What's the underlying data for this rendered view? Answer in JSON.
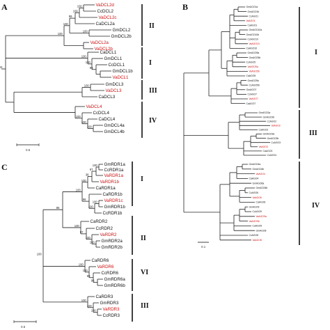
{
  "panels": {
    "A": {
      "letter": "A",
      "leaves": [
        {
          "name": "VaDCL2d",
          "color": "#cc1111"
        },
        {
          "name": "CcDCL2",
          "color": "#111111"
        },
        {
          "name": "VaDCL2c",
          "color": "#cc1111"
        },
        {
          "name": "CaDCL2a",
          "color": "#111111"
        },
        {
          "name": "GmDCL2",
          "color": "#111111"
        },
        {
          "name": "GmDCL2b",
          "color": "#111111"
        },
        {
          "name": "VaDCL2a",
          "color": "#cc1111"
        },
        {
          "name": "VaDCL2b",
          "color": "#cc1111"
        },
        {
          "name": "CaDCL1",
          "color": "#111111"
        },
        {
          "name": "GmDCL1",
          "color": "#111111"
        },
        {
          "name": "CcDCL1",
          "color": "#111111"
        },
        {
          "name": "GmDCL1b",
          "color": "#111111"
        },
        {
          "name": "VaDCL1",
          "color": "#cc1111"
        },
        {
          "name": "GmDCL3",
          "color": "#111111"
        },
        {
          "name": "VaDCL3",
          "color": "#cc1111"
        },
        {
          "name": "CaDCL3",
          "color": "#111111"
        },
        {
          "name": "VaDCL4",
          "color": "#cc1111"
        },
        {
          "name": "CcDCL4",
          "color": "#111111"
        },
        {
          "name": "CaDCL4",
          "color": "#111111"
        },
        {
          "name": "GmDCL4a",
          "color": "#111111"
        },
        {
          "name": "GmDCL4b",
          "color": "#111111"
        }
      ],
      "bootstraps": [
        "100",
        "100",
        "99",
        "100",
        "100",
        "100",
        "92",
        "100",
        "100",
        "99",
        "100",
        "100",
        "100",
        "100"
      ],
      "groups": [
        "II",
        "I",
        "III",
        "IV"
      ],
      "scale": "0.5"
    },
    "B": {
      "letter": "B",
      "leaves": [
        {
          "name": "GmAGO1a",
          "color": "#111111"
        },
        {
          "name": "GmAGO1b",
          "color": "#111111"
        },
        {
          "name": "CcAGO1",
          "color": "#111111"
        },
        {
          "name": "VaAGO1",
          "color": "#cc1111"
        },
        {
          "name": "CaAGO1",
          "color": "#111111"
        },
        {
          "name": "GmAGO10a",
          "color": "#111111"
        },
        {
          "name": "GmAGO10b",
          "color": "#111111"
        },
        {
          "name": "CcAGO10",
          "color": "#111111"
        },
        {
          "name": "VaAGO10",
          "color": "#cc1111"
        },
        {
          "name": "CaAGO10",
          "color": "#111111"
        },
        {
          "name": "GmAGO5a",
          "color": "#111111"
        },
        {
          "name": "GmAGO5b",
          "color": "#111111"
        },
        {
          "name": "CcAGO5",
          "color": "#111111"
        },
        {
          "name": "VaAGO5a",
          "color": "#cc1111"
        },
        {
          "name": "VaAGO5b",
          "color": "#cc1111"
        },
        {
          "name": "CaAGO5",
          "color": "#111111"
        },
        {
          "name": "GmAGO5c",
          "color": "#111111"
        },
        {
          "name": "CcAGO5b",
          "color": "#111111"
        },
        {
          "name": "GmAGO7",
          "color": "#111111"
        },
        {
          "name": "CcAGO7",
          "color": "#111111"
        },
        {
          "name": "VaAGO7",
          "color": "#cc1111"
        },
        {
          "name": "CaAGO7",
          "color": "#111111"
        },
        {
          "name": "GmAGO2a",
          "color": "#111111"
        },
        {
          "name": "GmAGO2b",
          "color": "#111111"
        },
        {
          "name": "CcAGO2",
          "color": "#111111"
        },
        {
          "name": "VaAGO2",
          "color": "#cc1111"
        },
        {
          "name": "CaAGO2",
          "color": "#111111"
        },
        {
          "name": "GmAGO3a",
          "color": "#111111"
        },
        {
          "name": "GmAGO3b",
          "color": "#111111"
        },
        {
          "name": "CcAGO3",
          "color": "#111111"
        },
        {
          "name": "VaAGO3",
          "color": "#cc1111"
        },
        {
          "name": "CaAGO3",
          "color": "#111111"
        },
        {
          "name": "CcAGO4",
          "color": "#111111"
        },
        {
          "name": "GmAGO4a",
          "color": "#111111"
        },
        {
          "name": "GmAGO4b",
          "color": "#111111"
        },
        {
          "name": "VaAGO4",
          "color": "#cc1111"
        },
        {
          "name": "CaAGO4",
          "color": "#111111"
        },
        {
          "name": "GmAGO6a",
          "color": "#111111"
        },
        {
          "name": "GmAGO6b",
          "color": "#111111"
        },
        {
          "name": "CcAGO6",
          "color": "#111111"
        },
        {
          "name": "VaAGO6",
          "color": "#cc1111"
        },
        {
          "name": "CaAGO6",
          "color": "#111111"
        },
        {
          "name": "GmAGO9",
          "color": "#111111"
        },
        {
          "name": "CcAGO9",
          "color": "#111111"
        },
        {
          "name": "VaAGO9a",
          "color": "#cc1111"
        },
        {
          "name": "VaAGO9b",
          "color": "#cc1111"
        },
        {
          "name": "CaAGO9",
          "color": "#111111"
        },
        {
          "name": "GmAGO8",
          "color": "#111111"
        },
        {
          "name": "CcAGO8",
          "color": "#111111"
        },
        {
          "name": "VaAGO8",
          "color": "#cc1111"
        }
      ],
      "groups": [
        "I",
        "III",
        "IV"
      ],
      "scale": "0.1"
    },
    "C": {
      "letter": "C",
      "leaves": [
        {
          "name": "GmRDR1a",
          "color": "#111111"
        },
        {
          "name": "CcRDR1a",
          "color": "#111111"
        },
        {
          "name": "VaRDR1a",
          "color": "#cc1111"
        },
        {
          "name": "VaRDR1b",
          "color": "#cc1111"
        },
        {
          "name": "CaRDR1a",
          "color": "#111111"
        },
        {
          "name": "CaRDR1b",
          "color": "#111111"
        },
        {
          "name": "VaRDR1c",
          "color": "#cc1111"
        },
        {
          "name": "GmRDR1b",
          "color": "#111111"
        },
        {
          "name": "CcRDR1b",
          "color": "#111111"
        },
        {
          "name": "CaRDR2",
          "color": "#111111"
        },
        {
          "name": "CcRDR2",
          "color": "#111111"
        },
        {
          "name": "VaRDR2",
          "color": "#cc1111"
        },
        {
          "name": "GmRDR2a",
          "color": "#111111"
        },
        {
          "name": "GmRDR2b",
          "color": "#111111"
        },
        {
          "name": "CaRDR6",
          "color": "#111111"
        },
        {
          "name": "VaRDR6",
          "color": "#cc1111"
        },
        {
          "name": "CcRDR6",
          "color": "#111111"
        },
        {
          "name": "GmRDR6a",
          "color": "#111111"
        },
        {
          "name": "GmRDR6b",
          "color": "#111111"
        },
        {
          "name": "CaRDR3",
          "color": "#111111"
        },
        {
          "name": "GmRDR3",
          "color": "#111111"
        },
        {
          "name": "VaRDR3",
          "color": "#cc1111"
        },
        {
          "name": "CcRDR3",
          "color": "#111111"
        }
      ],
      "bootstraps": [
        "100",
        "97",
        "38",
        "100",
        "100",
        "96",
        "100",
        "100",
        "86",
        "100",
        "97",
        "100",
        "100",
        "100",
        "100",
        "99",
        "98",
        "100",
        "100",
        "100",
        "100",
        "100",
        "38"
      ],
      "groups": [
        "I",
        "II",
        "VI",
        "III"
      ],
      "scale": "0.5"
    }
  }
}
